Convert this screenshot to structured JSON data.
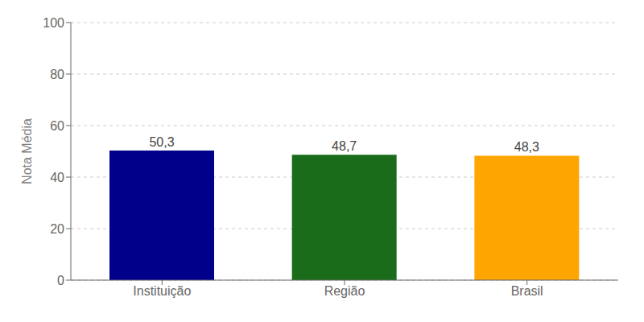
{
  "chart_data": {
    "type": "bar",
    "categories": [
      "Instituição",
      "Região",
      "Brasil"
    ],
    "values": [
      50.3,
      48.7,
      48.3
    ],
    "value_labels": [
      "50,3",
      "48,7",
      "48,3"
    ],
    "data_labels": true,
    "colors": [
      "#00008B",
      "#1A6B1A",
      "#FFA500"
    ],
    "ylabel": "Nota Média",
    "ylim": [
      0,
      100
    ],
    "yticks": [
      0,
      20,
      40,
      60,
      80,
      100
    ],
    "grid": true
  }
}
